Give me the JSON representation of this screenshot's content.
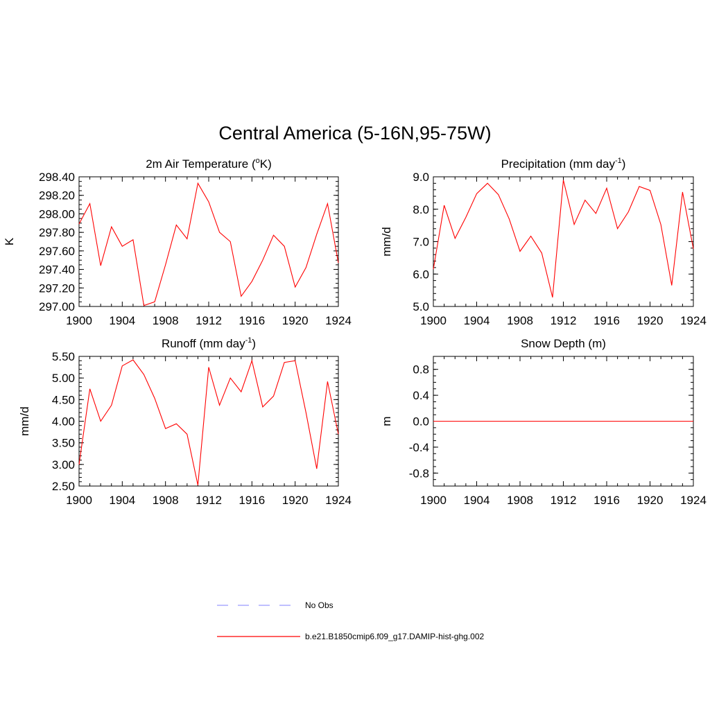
{
  "title": "Central America (5-16N,95-75W)",
  "colors": {
    "model": "#ff0000",
    "obs": "#9999ff",
    "axis": "#000000"
  },
  "legend": {
    "placement": "bottom-center",
    "entries": [
      {
        "label": "No Obs",
        "style": "dashed",
        "color": "#9999ff"
      },
      {
        "label": "b.e21.B1850cmip6.f09_g17.DAMIP-hist-ghg.002",
        "style": "solid",
        "color": "#ff0000"
      }
    ]
  },
  "chart_data": [
    {
      "type": "line",
      "title": "2m Air Temperature (",
      "title_sup": "o",
      "title_end": "K)",
      "ylabel": "K",
      "xlim": [
        1900,
        1924
      ],
      "ylim": [
        297.0,
        298.4
      ],
      "x_ticks": [
        1900,
        1904,
        1908,
        1912,
        1916,
        1920,
        1924
      ],
      "y_ticks": [
        "297.00",
        "297.20",
        "297.40",
        "297.60",
        "297.80",
        "298.00",
        "298.20",
        "298.40"
      ],
      "y_tick_values": [
        297.0,
        297.2,
        297.4,
        297.6,
        297.8,
        298.0,
        298.2,
        298.4
      ],
      "y_minor_step": 0.05,
      "x": [
        1900,
        1901,
        1902,
        1903,
        1904,
        1905,
        1906,
        1907,
        1908,
        1909,
        1910,
        1911,
        1912,
        1913,
        1914,
        1915,
        1916,
        1917,
        1918,
        1919,
        1920,
        1921,
        1922,
        1923,
        1924
      ],
      "series": [
        {
          "values": [
            297.89,
            298.11,
            297.44,
            297.86,
            297.65,
            297.72,
            297.01,
            297.05,
            297.45,
            297.88,
            297.73,
            298.33,
            298.13,
            297.8,
            297.7,
            297.11,
            297.27,
            297.5,
            297.77,
            297.65,
            297.21,
            297.42,
            297.78,
            298.11,
            297.47
          ]
        }
      ]
    },
    {
      "type": "line",
      "title": "Precipitation (mm day",
      "title_sup": "-1",
      "title_end": ")",
      "ylabel": "mm/d",
      "xlim": [
        1900,
        1924
      ],
      "ylim": [
        5.0,
        9.0
      ],
      "x_ticks": [
        1900,
        1904,
        1908,
        1912,
        1916,
        1920,
        1924
      ],
      "y_ticks": [
        "5.0",
        "6.0",
        "7.0",
        "8.0",
        "9.0"
      ],
      "y_tick_values": [
        5.0,
        6.0,
        7.0,
        8.0,
        9.0
      ],
      "y_minor_step": 0.2,
      "x": [
        1900,
        1901,
        1902,
        1903,
        1904,
        1905,
        1906,
        1907,
        1908,
        1909,
        1910,
        1911,
        1912,
        1913,
        1914,
        1915,
        1916,
        1917,
        1918,
        1919,
        1920,
        1921,
        1922,
        1923,
        1924
      ],
      "series": [
        {
          "values": [
            6.15,
            8.12,
            7.1,
            7.75,
            8.48,
            8.8,
            8.45,
            7.7,
            6.7,
            7.17,
            6.65,
            5.28,
            8.9,
            7.53,
            8.28,
            7.87,
            8.65,
            7.4,
            7.92,
            8.7,
            8.58,
            7.53,
            5.65,
            8.53,
            6.78
          ]
        }
      ]
    },
    {
      "type": "line",
      "title": "Runoff (mm day",
      "title_sup": "-1",
      "title_end": ")",
      "ylabel": "mm/d",
      "xlim": [
        1900,
        1924
      ],
      "ylim": [
        2.5,
        5.5
      ],
      "x_ticks": [
        1900,
        1904,
        1908,
        1912,
        1916,
        1920,
        1924
      ],
      "y_ticks": [
        "2.50",
        "3.00",
        "3.50",
        "4.00",
        "4.50",
        "5.00",
        "5.50"
      ],
      "y_tick_values": [
        2.5,
        3.0,
        3.5,
        4.0,
        4.5,
        5.0,
        5.5
      ],
      "y_minor_step": 0.1,
      "x": [
        1900,
        1901,
        1902,
        1903,
        1904,
        1905,
        1906,
        1907,
        1908,
        1909,
        1910,
        1911,
        1912,
        1913,
        1914,
        1915,
        1916,
        1917,
        1918,
        1919,
        1920,
        1921,
        1922,
        1923,
        1924
      ],
      "series": [
        {
          "values": [
            3.0,
            4.75,
            4.0,
            4.37,
            5.28,
            5.42,
            5.08,
            4.53,
            3.83,
            3.94,
            3.7,
            2.52,
            5.25,
            4.37,
            5.0,
            4.68,
            5.4,
            4.33,
            4.58,
            5.36,
            5.4,
            4.2,
            2.9,
            4.92,
            3.7
          ]
        }
      ]
    },
    {
      "type": "line",
      "title": "Snow Depth (m)",
      "title_sup": "",
      "title_end": "",
      "ylabel": "m",
      "xlim": [
        1900,
        1924
      ],
      "ylim": [
        -1.0,
        1.0
      ],
      "x_ticks": [
        1900,
        1904,
        1908,
        1912,
        1916,
        1920,
        1924
      ],
      "y_ticks": [
        "-0.8",
        "-0.4",
        "0.0",
        "0.4",
        "0.8"
      ],
      "y_tick_values": [
        -0.8,
        -0.4,
        0.0,
        0.4,
        0.8
      ],
      "y_minor_step": 0.1,
      "x": [
        1900,
        1901,
        1902,
        1903,
        1904,
        1905,
        1906,
        1907,
        1908,
        1909,
        1910,
        1911,
        1912,
        1913,
        1914,
        1915,
        1916,
        1917,
        1918,
        1919,
        1920,
        1921,
        1922,
        1923,
        1924
      ],
      "series": [
        {
          "values": [
            0,
            0,
            0,
            0,
            0,
            0,
            0,
            0,
            0,
            0,
            0,
            0,
            0,
            0,
            0,
            0,
            0,
            0,
            0,
            0,
            0,
            0,
            0,
            0,
            0
          ]
        }
      ]
    }
  ]
}
